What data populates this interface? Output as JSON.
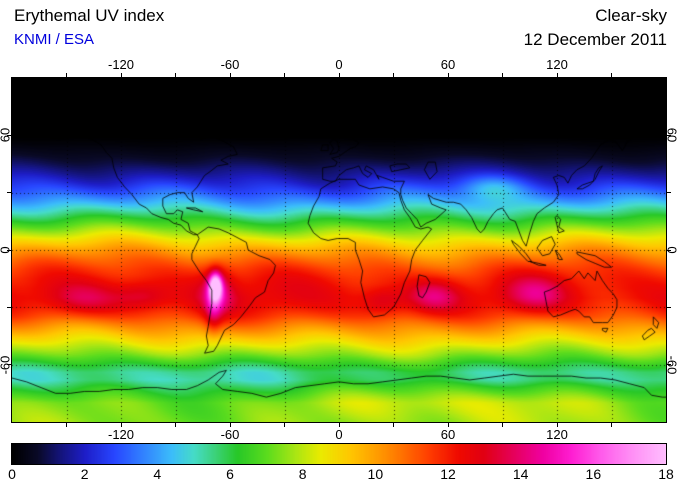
{
  "header": {
    "title": "Erythemal UV index",
    "source": "KNMI / ESA",
    "source_color": "#0000dd",
    "condition": "Clear-sky",
    "date": "12 December 2011"
  },
  "chart_data": {
    "type": "heatmap",
    "title": "Erythemal UV index",
    "subtitle": "Clear-sky, 12 December 2011",
    "projection": "equirectangular world map",
    "lon_range": [
      -180,
      180
    ],
    "lat_range": [
      -90,
      90
    ],
    "grid": {
      "lon_step": 30,
      "lat_step": 30,
      "style": "dotted"
    },
    "axes": {
      "lon_tick_labels": [
        -120,
        -60,
        0,
        60,
        120
      ],
      "lat_tick_labels": [
        60,
        0,
        -60
      ],
      "minor_tick_step": 30
    },
    "colorbar": {
      "min": 0,
      "max": 18,
      "tick_labels": [
        0,
        2,
        4,
        6,
        8,
        10,
        12,
        14,
        16,
        18
      ],
      "stops": [
        [
          0.0,
          "#000000"
        ],
        [
          0.7,
          "#0a0a28"
        ],
        [
          1.3,
          "#141478"
        ],
        [
          2.0,
          "#1e1ec8"
        ],
        [
          2.8,
          "#2846ff"
        ],
        [
          3.6,
          "#3282ff"
        ],
        [
          4.4,
          "#3cbefa"
        ],
        [
          5.0,
          "#46dcc8"
        ],
        [
          5.6,
          "#3cd278"
        ],
        [
          6.2,
          "#28c828"
        ],
        [
          7.0,
          "#5adc1e"
        ],
        [
          7.8,
          "#aae614"
        ],
        [
          8.5,
          "#ebeb00"
        ],
        [
          9.3,
          "#ffc800"
        ],
        [
          10.0,
          "#ffa000"
        ],
        [
          10.8,
          "#ff6e00"
        ],
        [
          11.5,
          "#ff3c00"
        ],
        [
          12.3,
          "#f00a00"
        ],
        [
          13.0,
          "#e10014"
        ],
        [
          13.8,
          "#e6005a"
        ],
        [
          14.6,
          "#f000a0"
        ],
        [
          15.4,
          "#ff1ed2"
        ],
        [
          16.2,
          "#ff5aeb"
        ],
        [
          17.0,
          "#ff8cf5"
        ],
        [
          18.0,
          "#ffbeff"
        ]
      ]
    },
    "uv_lat_profile": [
      [
        90,
        -0.3
      ],
      [
        70,
        -0.3
      ],
      [
        62,
        -0.15
      ],
      [
        55,
        0.2
      ],
      [
        50,
        0.55
      ],
      [
        45,
        1.0
      ],
      [
        40,
        1.6
      ],
      [
        35,
        2.3
      ],
      [
        30,
        3.1
      ],
      [
        25,
        4.1
      ],
      [
        20,
        5.2
      ],
      [
        15,
        6.4
      ],
      [
        10,
        7.6
      ],
      [
        5,
        8.8
      ],
      [
        0,
        9.9
      ],
      [
        -5,
        10.8
      ],
      [
        -10,
        11.5
      ],
      [
        -15,
        12.0
      ],
      [
        -20,
        12.3
      ],
      [
        -25,
        12.4
      ],
      [
        -30,
        12.1
      ],
      [
        -35,
        11.4
      ],
      [
        -40,
        10.4
      ],
      [
        -45,
        9.4
      ],
      [
        -50,
        8.4
      ],
      [
        -55,
        7.4
      ],
      [
        -60,
        6.2
      ],
      [
        -64,
        5.4
      ],
      [
        -68,
        5.3
      ],
      [
        -72,
        6.0
      ],
      [
        -76,
        6.6
      ],
      [
        -80,
        7.2
      ],
      [
        -90,
        7.4
      ]
    ],
    "anomalies": [
      {
        "name": "altiplano-peak",
        "lon": -68,
        "lat": -19,
        "sx": 2.5,
        "sy": 5,
        "amp": 6.0
      },
      {
        "name": "andes-halo",
        "lon": -67,
        "lat": -22,
        "sx": 6,
        "sy": 9,
        "amp": 2.0
      },
      {
        "name": "southern-andes",
        "lon": -69,
        "lat": -33,
        "sx": 3,
        "sy": 8,
        "amp": 1.5
      },
      {
        "name": "south-indian-ocean",
        "lon": 52,
        "lat": -24,
        "sx": 10,
        "sy": 6,
        "amp": 1.8
      },
      {
        "name": "west-australia",
        "lon": 108,
        "lat": -23,
        "sx": 12,
        "sy": 7,
        "amp": 1.8
      },
      {
        "name": "southern-africa",
        "lon": 24,
        "lat": -27,
        "sx": 8,
        "sy": 5,
        "amp": 1.2
      },
      {
        "name": "south-pacific-1",
        "lon": -140,
        "lat": -26,
        "sx": 14,
        "sy": 6,
        "amp": 1.3
      },
      {
        "name": "south-pacific-2",
        "lon": -108,
        "lat": -24,
        "sx": 10,
        "sy": 5,
        "amp": 1.2
      },
      {
        "name": "tibet",
        "lon": 85,
        "lat": 32,
        "sx": 12,
        "sy": 5,
        "amp": 1.5
      },
      {
        "name": "east-antarctica",
        "lon": 60,
        "lat": -79,
        "sx": 60,
        "sy": 8,
        "amp": 1.0
      }
    ]
  }
}
